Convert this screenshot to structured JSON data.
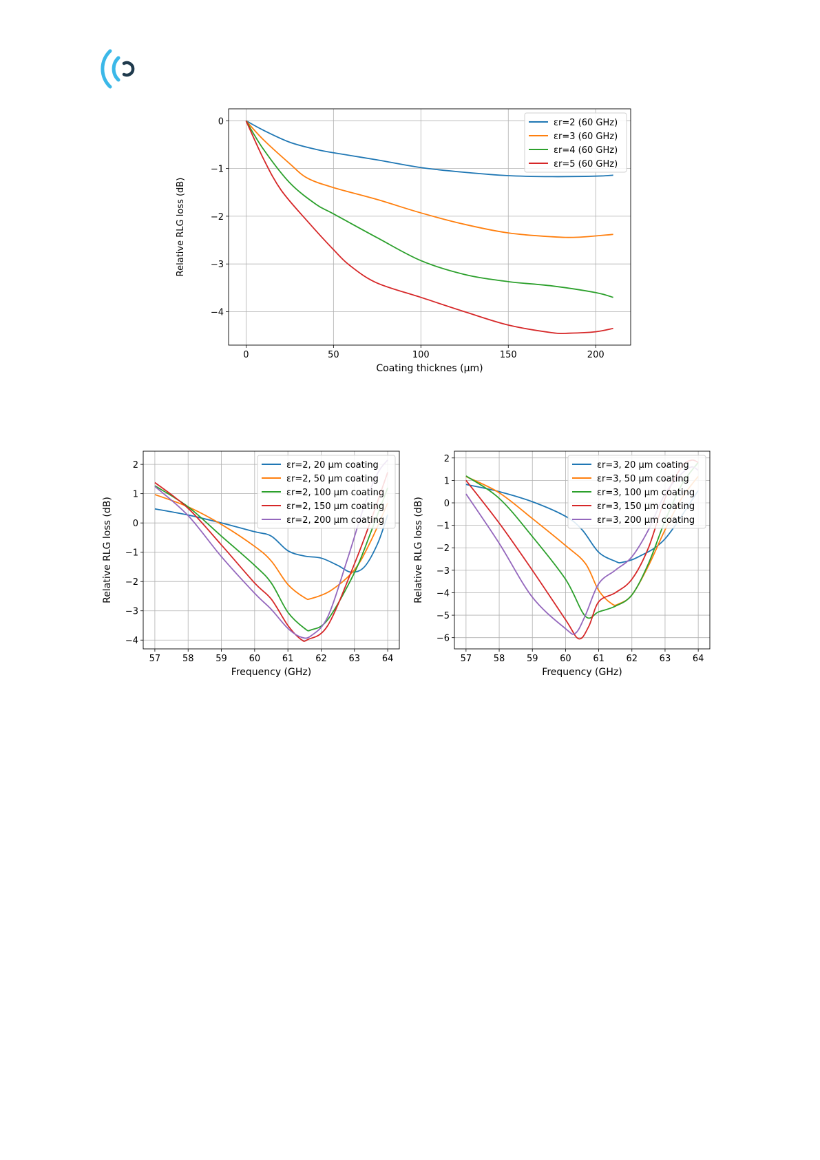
{
  "colors": {
    "c0": "#1f77b4",
    "c1": "#ff7f0e",
    "c2": "#2ca02c",
    "c3": "#d62728",
    "c4": "#9467bd",
    "logo_light": "#3bb8e8",
    "logo_dark": "#1f3a4d"
  },
  "chart_data": [
    {
      "type": "line",
      "title": "",
      "xlabel": "Coating thicknes (µm)",
      "ylabel": "Relative RLG loss (dB)",
      "xlim": [
        -10,
        220
      ],
      "ylim": [
        -4.7,
        0.25
      ],
      "xticks": [
        0,
        50,
        100,
        150,
        200
      ],
      "yticks": [
        0,
        -1,
        -2,
        -3,
        -4
      ],
      "grid": true,
      "legend_position": "top-right",
      "series": [
        {
          "name": "εr=2 (60 GHz)",
          "x": [
            0,
            10,
            25,
            40,
            50,
            75,
            100,
            125,
            150,
            175,
            200,
            210
          ],
          "y": [
            0,
            -0.2,
            -0.45,
            -0.6,
            -0.67,
            -0.82,
            -0.98,
            -1.08,
            -1.15,
            -1.17,
            -1.16,
            -1.14
          ]
        },
        {
          "name": "εr=3 (60 GHz)",
          "x": [
            0,
            10,
            25,
            35,
            50,
            75,
            100,
            125,
            150,
            175,
            190,
            210
          ],
          "y": [
            0,
            -0.4,
            -0.9,
            -1.2,
            -1.4,
            -1.65,
            -1.93,
            -2.17,
            -2.35,
            -2.43,
            -2.44,
            -2.38
          ]
        },
        {
          "name": "εr=4 (60 GHz)",
          "x": [
            0,
            10,
            25,
            40,
            50,
            75,
            100,
            125,
            150,
            175,
            200,
            210
          ],
          "y": [
            0,
            -0.6,
            -1.3,
            -1.75,
            -1.95,
            -2.45,
            -2.93,
            -3.22,
            -3.37,
            -3.46,
            -3.6,
            -3.7
          ]
        },
        {
          "name": "εr=5 (60 GHz)",
          "x": [
            0,
            10,
            20,
            35,
            50,
            60,
            75,
            100,
            125,
            150,
            175,
            185,
            200,
            210
          ],
          "y": [
            0,
            -0.8,
            -1.45,
            -2.1,
            -2.7,
            -3.05,
            -3.4,
            -3.7,
            -4.0,
            -4.28,
            -4.44,
            -4.45,
            -4.42,
            -4.35
          ]
        }
      ]
    },
    {
      "type": "line",
      "title": "",
      "xlabel": "Frequency (GHz)",
      "ylabel": "Relative RLG loss (dB)",
      "xlim": [
        56.65,
        64.35
      ],
      "ylim": [
        -4.3,
        2.45
      ],
      "xticks": [
        57,
        58,
        59,
        60,
        61,
        62,
        63,
        64
      ],
      "yticks": [
        2,
        1,
        0,
        -1,
        -2,
        -3,
        -4
      ],
      "grid": true,
      "legend_position": "top-right",
      "series": [
        {
          "name": "εr=2, 20 µm coating",
          "x": [
            57,
            58,
            59,
            60,
            60.5,
            61,
            61.5,
            62,
            62.5,
            62.9,
            63.3,
            63.7,
            64
          ],
          "y": [
            0.48,
            0.27,
            0.0,
            -0.3,
            -0.45,
            -0.95,
            -1.13,
            -1.2,
            -1.45,
            -1.68,
            -1.5,
            -0.7,
            0.28
          ]
        },
        {
          "name": "εr=2, 50 µm coating",
          "x": [
            57,
            58,
            59,
            60,
            60.5,
            61,
            61.5,
            61.7,
            62.3,
            63,
            63.5,
            64
          ],
          "y": [
            0.97,
            0.55,
            -0.05,
            -0.8,
            -1.3,
            -2.1,
            -2.55,
            -2.58,
            -2.3,
            -1.6,
            -0.6,
            0.68
          ]
        },
        {
          "name": "εr=2, 100 µm coating",
          "x": [
            57,
            58,
            59,
            60,
            60.5,
            61,
            61.5,
            61.7,
            62.2,
            63,
            63.5,
            64
          ],
          "y": [
            1.27,
            0.55,
            -0.45,
            -1.45,
            -2.05,
            -3.05,
            -3.6,
            -3.65,
            -3.3,
            -1.7,
            -0.3,
            1.2
          ]
        },
        {
          "name": "εr=2, 150 µm coating",
          "x": [
            57,
            58,
            59,
            60,
            60.5,
            61,
            61.4,
            61.6,
            62.2,
            63,
            63.5,
            64
          ],
          "y": [
            1.38,
            0.5,
            -0.75,
            -2.05,
            -2.6,
            -3.5,
            -3.98,
            -3.98,
            -3.5,
            -1.4,
            0.1,
            1.73
          ]
        },
        {
          "name": "εr=2, 200 µm coating",
          "x": [
            57,
            58,
            59,
            60,
            60.5,
            61,
            61.4,
            61.7,
            62.2,
            62.8,
            63.3,
            63.7,
            64
          ],
          "y": [
            1.25,
            0.25,
            -1.15,
            -2.4,
            -2.95,
            -3.6,
            -3.9,
            -3.85,
            -3.2,
            -1.2,
            0.6,
            1.7,
            2.15
          ]
        }
      ]
    },
    {
      "type": "line",
      "title": "",
      "xlabel": "Frequency (GHz)",
      "ylabel": "Relative RLG loss (dB)",
      "xlim": [
        56.65,
        64.35
      ],
      "ylim": [
        -6.5,
        2.3
      ],
      "xticks": [
        57,
        58,
        59,
        60,
        61,
        62,
        63,
        64
      ],
      "yticks": [
        2,
        1,
        0,
        -1,
        -2,
        -3,
        -4,
        -5,
        -6
      ],
      "grid": true,
      "legend_position": "top-right",
      "series": [
        {
          "name": "εr=3, 20 µm coating",
          "x": [
            57,
            58,
            59,
            60,
            60.5,
            61,
            61.5,
            61.7,
            62.2,
            63,
            64
          ],
          "y": [
            0.82,
            0.5,
            0.05,
            -0.6,
            -1.2,
            -2.2,
            -2.6,
            -2.65,
            -2.4,
            -1.6,
            0.55
          ]
        },
        {
          "name": "εr=3, 50 µm coating",
          "x": [
            57,
            58,
            59,
            60,
            60.6,
            61,
            61.4,
            61.6,
            62,
            62.5,
            63,
            63.5,
            64
          ],
          "y": [
            1.17,
            0.45,
            -0.7,
            -1.9,
            -2.7,
            -3.9,
            -4.5,
            -4.5,
            -4.1,
            -2.8,
            -1.2,
            0.2,
            1.18
          ]
        },
        {
          "name": "εr=3, 100 µm coating",
          "x": [
            57,
            58,
            59,
            60,
            60.6,
            61,
            61.5,
            62,
            62.5,
            63,
            63.5,
            64
          ],
          "y": [
            1.2,
            0.2,
            -1.5,
            -3.4,
            -5.05,
            -4.85,
            -4.6,
            -4.1,
            -2.7,
            -0.8,
            0.8,
            1.8
          ]
        },
        {
          "name": "εr=3, 150 µm coating",
          "x": [
            57,
            58,
            59,
            60,
            60.4,
            60.7,
            61,
            61.5,
            62,
            62.5,
            63,
            63.5,
            63.8,
            64
          ],
          "y": [
            1.0,
            -0.9,
            -3.0,
            -5.2,
            -6.05,
            -5.5,
            -4.4,
            -4.0,
            -3.4,
            -2.0,
            0.2,
            1.6,
            1.9,
            1.8
          ]
        },
        {
          "name": "εr=3, 200 µm coating",
          "x": [
            57,
            58,
            59,
            60,
            60.3,
            60.6,
            61,
            61.5,
            62,
            62.5,
            63,
            63.5,
            63.8,
            64
          ],
          "y": [
            0.4,
            -1.8,
            -4.2,
            -5.6,
            -5.8,
            -5.0,
            -3.6,
            -3.0,
            -2.4,
            -1.2,
            0.4,
            1.3,
            1.6,
            1.45
          ]
        }
      ]
    }
  ]
}
